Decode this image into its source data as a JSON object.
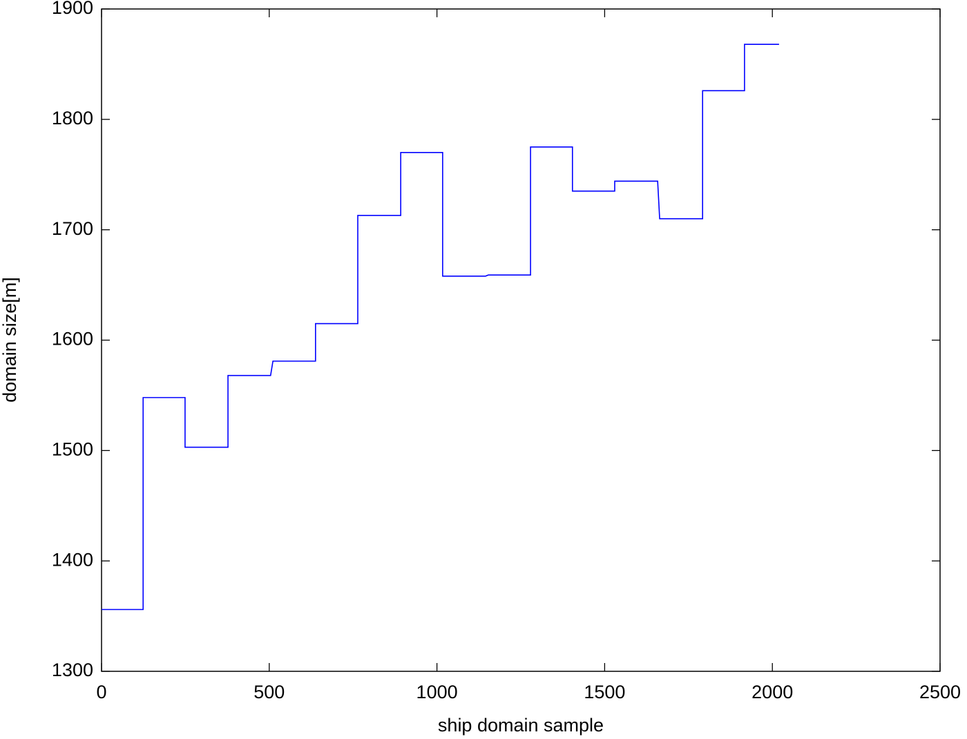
{
  "chart_data": {
    "type": "line",
    "xlabel": "ship domain sample",
    "ylabel": "domain size[m]",
    "x": [
      0,
      124,
      124,
      249,
      249,
      377,
      377,
      504,
      511,
      638,
      638,
      764,
      764,
      892,
      892,
      1017,
      1017,
      1145,
      1153,
      1279,
      1279,
      1404,
      1404,
      1530,
      1530,
      1658,
      1664,
      1792,
      1792,
      1917,
      1917,
      2020
    ],
    "series": [
      {
        "color": "#0000ff",
        "values": [
          1356,
          1356,
          1548,
          1548,
          1503,
          1503,
          1568,
          1568,
          1581,
          1581,
          1615,
          1615,
          1713,
          1713,
          1770,
          1770,
          1658,
          1658,
          1659,
          1659,
          1775,
          1775,
          1735,
          1735,
          1744,
          1744,
          1710,
          1710,
          1826,
          1826,
          1868,
          1868
        ]
      }
    ],
    "xlim": [
      0,
      2500
    ],
    "xticks": [
      0,
      500,
      1000,
      1500,
      2000,
      2500
    ],
    "ylim": [
      1300,
      1900
    ],
    "yticks": [
      1300,
      1400,
      1500,
      1600,
      1700,
      1800,
      1900
    ],
    "grid": false
  }
}
